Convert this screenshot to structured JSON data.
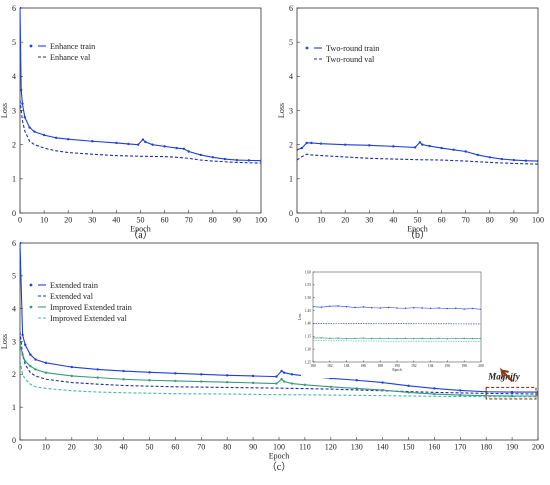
{
  "colors": {
    "train": "#1f3fd6",
    "val": "#1a2eaa",
    "improved_train": "#3a9a78",
    "improved_val": "#3fb8a8",
    "magnify": "#8a3a1a"
  },
  "chart_data": [
    {
      "id": "a",
      "type": "line",
      "caption": "（a）",
      "xlabel": "Epoch",
      "ylabel": "Loss",
      "xlim": [
        0,
        100
      ],
      "ylim": [
        0,
        6
      ],
      "xticks": [
        0,
        10,
        20,
        30,
        40,
        50,
        60,
        70,
        80,
        90,
        100
      ],
      "yticks": [
        0,
        1,
        2,
        3,
        4,
        5,
        6
      ],
      "legend_position": "top-left",
      "series": [
        {
          "name": "Enhance train",
          "style": "solid-marker",
          "color": "#1f3fd6",
          "x": [
            0,
            0.5,
            1,
            2,
            4,
            6,
            10,
            15,
            20,
            30,
            40,
            45,
            49,
            51,
            52,
            55,
            60,
            65,
            68,
            70,
            75,
            80,
            85,
            90,
            95,
            100
          ],
          "y": [
            6.0,
            3.6,
            3.2,
            2.8,
            2.5,
            2.38,
            2.28,
            2.2,
            2.16,
            2.1,
            2.05,
            2.02,
            2.0,
            2.15,
            2.08,
            2.0,
            1.95,
            1.9,
            1.88,
            1.8,
            1.7,
            1.63,
            1.58,
            1.55,
            1.54,
            1.53
          ]
        },
        {
          "name": "Enhance val",
          "style": "dashed",
          "color": "#1a2eaa",
          "x": [
            0,
            1,
            2,
            4,
            6,
            10,
            15,
            20,
            30,
            40,
            50,
            60,
            65,
            70,
            75,
            80,
            90,
            100
          ],
          "y": [
            3.3,
            2.7,
            2.4,
            2.1,
            2.0,
            1.9,
            1.82,
            1.77,
            1.72,
            1.68,
            1.66,
            1.65,
            1.63,
            1.6,
            1.55,
            1.52,
            1.48,
            1.46
          ]
        }
      ]
    },
    {
      "id": "b",
      "type": "line",
      "caption": "（b）",
      "xlabel": "Epoch",
      "ylabel": "Loss",
      "xlim": [
        0,
        100
      ],
      "ylim": [
        0,
        6
      ],
      "xticks": [
        0,
        10,
        20,
        30,
        40,
        50,
        60,
        70,
        80,
        90,
        100
      ],
      "yticks": [
        0,
        1,
        2,
        3,
        4,
        5,
        6
      ],
      "legend_position": "top-right",
      "series": [
        {
          "name": "Two-round train",
          "style": "solid-marker",
          "color": "#1f3fd6",
          "x": [
            0,
            2,
            4,
            6,
            10,
            20,
            30,
            40,
            49,
            51,
            52,
            55,
            60,
            65,
            70,
            75,
            80,
            85,
            90,
            95,
            100
          ],
          "y": [
            1.85,
            1.9,
            2.05,
            2.05,
            2.03,
            2.0,
            1.98,
            1.95,
            1.92,
            2.07,
            2.0,
            1.96,
            1.9,
            1.85,
            1.8,
            1.7,
            1.63,
            1.58,
            1.55,
            1.53,
            1.52
          ]
        },
        {
          "name": "Two-round val",
          "style": "dashed",
          "color": "#1a2eaa",
          "x": [
            0,
            2,
            4,
            6,
            10,
            20,
            30,
            40,
            50,
            60,
            70,
            80,
            90,
            100
          ],
          "y": [
            1.55,
            1.65,
            1.72,
            1.7,
            1.68,
            1.64,
            1.6,
            1.58,
            1.56,
            1.55,
            1.52,
            1.48,
            1.45,
            1.43
          ]
        }
      ]
    },
    {
      "id": "c",
      "type": "line",
      "caption": "（c）",
      "xlabel": "Epoch",
      "ylabel": "Loss",
      "xlim": [
        0,
        200
      ],
      "ylim": [
        0,
        6
      ],
      "xticks": [
        0,
        10,
        20,
        30,
        40,
        50,
        60,
        70,
        80,
        90,
        100,
        110,
        120,
        130,
        140,
        150,
        160,
        170,
        180,
        190,
        200
      ],
      "yticks": [
        0,
        1,
        2,
        3,
        4,
        5,
        6
      ],
      "legend_position": "top-left",
      "annotation": "Magnify",
      "series": [
        {
          "name": "Extended train",
          "style": "solid-marker",
          "color": "#1f3fd6",
          "x": [
            0,
            1,
            2,
            4,
            6,
            10,
            20,
            30,
            40,
            50,
            60,
            70,
            80,
            90,
            99,
            101,
            102,
            105,
            110,
            120,
            130,
            140,
            150,
            160,
            170,
            180,
            190,
            200
          ],
          "y": [
            6.0,
            3.2,
            2.9,
            2.6,
            2.45,
            2.35,
            2.22,
            2.15,
            2.1,
            2.06,
            2.03,
            2.0,
            1.97,
            1.95,
            1.93,
            2.1,
            2.05,
            2.0,
            1.95,
            1.88,
            1.82,
            1.75,
            1.65,
            1.57,
            1.51,
            1.47,
            1.46,
            1.46
          ]
        },
        {
          "name": "Extended val",
          "style": "dashed",
          "color": "#1a2eaa",
          "x": [
            0,
            1,
            2,
            4,
            6,
            10,
            20,
            30,
            40,
            60,
            80,
            100,
            120,
            140,
            160,
            180,
            200
          ],
          "y": [
            3.3,
            2.6,
            2.3,
            2.05,
            1.95,
            1.85,
            1.75,
            1.7,
            1.66,
            1.62,
            1.6,
            1.58,
            1.55,
            1.5,
            1.45,
            1.42,
            1.4
          ]
        },
        {
          "name": "Improved Extended train",
          "style": "solid-marker",
          "color": "#3a9a78",
          "x": [
            0,
            1,
            2,
            4,
            6,
            10,
            20,
            30,
            40,
            50,
            60,
            70,
            80,
            90,
            99,
            101,
            102,
            105,
            110,
            120,
            130,
            140,
            150,
            160,
            170,
            180,
            190,
            200
          ],
          "y": [
            2.9,
            2.6,
            2.4,
            2.25,
            2.15,
            2.05,
            1.95,
            1.9,
            1.85,
            1.82,
            1.8,
            1.78,
            1.76,
            1.74,
            1.72,
            1.85,
            1.78,
            1.72,
            1.68,
            1.62,
            1.57,
            1.52,
            1.45,
            1.4,
            1.37,
            1.35,
            1.34,
            1.34
          ]
        },
        {
          "name": "Improved Extended val",
          "style": "dashed",
          "color": "#3fb8a8",
          "x": [
            0,
            1,
            2,
            4,
            6,
            10,
            20,
            30,
            40,
            60,
            80,
            100,
            120,
            140,
            160,
            180,
            200
          ],
          "y": [
            2.4,
            2.0,
            1.85,
            1.7,
            1.62,
            1.57,
            1.5,
            1.46,
            1.44,
            1.41,
            1.4,
            1.38,
            1.37,
            1.35,
            1.33,
            1.32,
            1.32
          ]
        }
      ]
    },
    {
      "id": "inset",
      "type": "line",
      "xlabel": "Epoch",
      "ylabel": "Loss",
      "xlim": [
        180,
        200
      ],
      "ylim": [
        1.25,
        1.6
      ],
      "xticks": [
        180,
        182,
        184,
        186,
        188,
        190,
        192,
        194,
        196,
        198,
        200
      ],
      "yticks": [
        1.25,
        1.3,
        1.35,
        1.4,
        1.45,
        1.5,
        1.55,
        1.6
      ],
      "series": [
        {
          "name": "Extended train",
          "style": "solid-marker",
          "color": "#1f3fd6",
          "x": [
            180,
            181,
            182,
            183,
            184,
            185,
            186,
            187,
            188,
            189,
            190,
            191,
            192,
            193,
            194,
            195,
            196,
            197,
            198,
            199,
            200
          ],
          "y": [
            1.465,
            1.463,
            1.467,
            1.468,
            1.465,
            1.462,
            1.464,
            1.461,
            1.46,
            1.462,
            1.46,
            1.459,
            1.461,
            1.46,
            1.459,
            1.46,
            1.458,
            1.459,
            1.456,
            1.458,
            1.455
          ]
        },
        {
          "name": "Extended val",
          "style": "dashed",
          "color": "#1a2eaa",
          "x": [
            180,
            200
          ],
          "y": [
            1.4,
            1.398
          ]
        },
        {
          "name": "Improved Extended train",
          "style": "solid-marker",
          "color": "#3a9a78",
          "x": [
            180,
            181,
            182,
            183,
            184,
            185,
            186,
            187,
            188,
            189,
            190,
            191,
            192,
            193,
            194,
            195,
            196,
            197,
            198,
            199,
            200
          ],
          "y": [
            1.343,
            1.344,
            1.342,
            1.343,
            1.341,
            1.342,
            1.343,
            1.341,
            1.342,
            1.342,
            1.341,
            1.342,
            1.341,
            1.342,
            1.341,
            1.342,
            1.34,
            1.341,
            1.342,
            1.341,
            1.341
          ]
        },
        {
          "name": "Improved Extended val",
          "style": "dashed",
          "color": "#3fb8a8",
          "x": [
            180,
            185,
            190,
            195,
            200
          ],
          "y": [
            1.333,
            1.332,
            1.331,
            1.331,
            1.33
          ]
        }
      ]
    }
  ]
}
